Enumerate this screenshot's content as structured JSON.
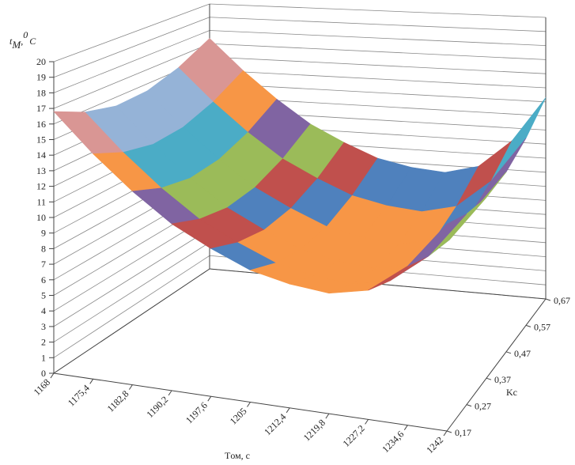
{
  "chart_data": {
    "type": "surface",
    "x_label": "Tом, с",
    "y_label": "Kc",
    "z_label": {
      "base": "t",
      "sub": "M",
      "sep": ",",
      "sup": "0",
      "unit": "C"
    },
    "xlim": [
      1168,
      1242
    ],
    "xticks": [
      1168,
      {
        "value": 1175.4,
        "label": "1175,4"
      },
      {
        "value": 1182.8,
        "label": "1182,8"
      },
      {
        "value": 1190.2,
        "label": "1190,2"
      },
      {
        "value": 1197.6,
        "label": "1197,6"
      },
      1205,
      {
        "value": 1212.4,
        "label": "1212,4"
      },
      {
        "value": 1219.8,
        "label": "1219,8"
      },
      {
        "value": 1227.2,
        "label": "1227,2"
      },
      {
        "value": 1234.6,
        "label": "1234,6"
      },
      1242
    ],
    "ylim": [
      0.17,
      0.67
    ],
    "yticks": [
      {
        "value": 0.17,
        "label": "0,17"
      },
      {
        "value": 0.27,
        "label": "0,27"
      },
      {
        "value": 0.37,
        "label": "0,37"
      },
      {
        "value": 0.47,
        "label": "0,47"
      },
      {
        "value": 0.57,
        "label": "0,57"
      },
      {
        "value": 0.67,
        "label": "0,67"
      }
    ],
    "zlim": [
      0,
      20
    ],
    "zticks": [
      0,
      1,
      2,
      3,
      4,
      5,
      6,
      7,
      8,
      9,
      10,
      11,
      12,
      13,
      14,
      15,
      16,
      17,
      18,
      19,
      20
    ],
    "grid": true,
    "band_colors": [
      "#4f81bd",
      "#c0504d",
      "#9bbb59",
      "#8064a2",
      "#4bacc6",
      "#f79646",
      "#f79646",
      "#f79646",
      "#4f81bd",
      "#c0504d",
      "#9bbb59",
      "#8064a2",
      "#4bacc6",
      "#f79646",
      "#95b3d7",
      "#d99694",
      "#c3d69b",
      "#b3a2c7",
      "#93cddd",
      "#fac090"
    ],
    "z": [
      [
        16.8,
        15.9,
        15.4,
        15.5,
        16.2,
        17.4
      ],
      [
        14.5,
        13.6,
        13.1,
        13.2,
        13.9,
        15.1
      ],
      [
        12.5,
        11.6,
        11.1,
        11.2,
        11.9,
        13.1
      ],
      [
        10.8,
        9.9,
        9.4,
        9.5,
        10.2,
        11.4
      ],
      [
        9.6,
        8.7,
        8.2,
        8.3,
        9.0,
        10.2
      ],
      [
        8.6,
        7.7,
        7.2,
        7.3,
        8.0,
        9.2
      ],
      [
        8.1,
        7.2,
        6.7,
        6.8,
        7.5,
        8.7
      ],
      [
        7.9,
        7.0,
        6.5,
        6.6,
        7.3,
        8.5
      ],
      [
        8.5,
        7.6,
        7.1,
        7.2,
        7.9,
        9.1
      ],
      [
        10.5,
        9.6,
        9.1,
        9.2,
        9.9,
        11.1
      ],
      [
        13.7,
        12.8,
        12.3,
        12.4,
        13.1,
        14.3
      ]
    ]
  }
}
